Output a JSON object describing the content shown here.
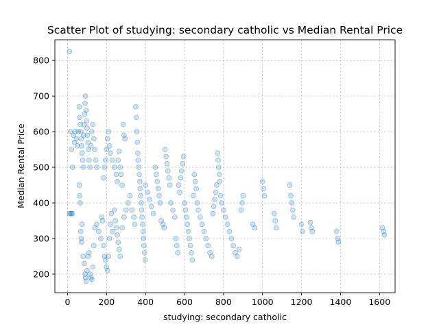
{
  "chart_data": {
    "type": "scatter",
    "title": "Scatter Plot of studying: secondary catholic vs Median Rental Price",
    "xlabel": "studying: secondary catholic",
    "ylabel": "Median Rental Price",
    "xlim": [
      -65,
      1680
    ],
    "ylim": [
      148,
      858
    ],
    "xticks": [
      0,
      200,
      400,
      600,
      800,
      1000,
      1200,
      1400,
      1600
    ],
    "yticks": [
      200,
      300,
      400,
      500,
      600,
      700,
      800
    ],
    "grid": true,
    "color": "#1f77b4",
    "series": [
      {
        "points": [
          [
            10,
            825
          ],
          [
            15,
            600
          ],
          [
            20,
            550
          ],
          [
            25,
            500
          ],
          [
            30,
            590
          ],
          [
            35,
            570
          ],
          [
            40,
            600
          ],
          [
            45,
            580
          ],
          [
            50,
            560
          ],
          [
            55,
            600
          ],
          [
            60,
            670
          ],
          [
            62,
            640
          ],
          [
            65,
            620
          ],
          [
            68,
            600
          ],
          [
            70,
            580
          ],
          [
            72,
            560
          ],
          [
            75,
            540
          ],
          [
            78,
            520
          ],
          [
            80,
            500
          ],
          [
            82,
            590
          ],
          [
            85,
            620
          ],
          [
            88,
            650
          ],
          [
            90,
            680
          ],
          [
            92,
            700
          ],
          [
            95,
            660
          ],
          [
            98,
            630
          ],
          [
            100,
            610
          ],
          [
            102,
            590
          ],
          [
            105,
            570
          ],
          [
            108,
            550
          ],
          [
            110,
            520
          ],
          [
            115,
            500
          ],
          [
            120,
            560
          ],
          [
            125,
            600
          ],
          [
            130,
            620
          ],
          [
            135,
            580
          ],
          [
            140,
            550
          ],
          [
            145,
            520
          ],
          [
            150,
            500
          ],
          [
            10,
            370
          ],
          [
            15,
            370
          ],
          [
            20,
            370
          ],
          [
            25,
            370
          ],
          [
            60,
            450
          ],
          [
            62,
            420
          ],
          [
            65,
            400
          ],
          [
            68,
            320
          ],
          [
            70,
            300
          ],
          [
            72,
            290
          ],
          [
            75,
            340
          ],
          [
            80,
            250
          ],
          [
            85,
            230
          ],
          [
            90,
            200
          ],
          [
            92,
            190
          ],
          [
            95,
            180
          ],
          [
            100,
            210
          ],
          [
            105,
            250
          ],
          [
            110,
            260
          ],
          [
            115,
            200
          ],
          [
            120,
            190
          ],
          [
            125,
            185
          ],
          [
            130,
            220
          ],
          [
            135,
            280
          ],
          [
            140,
            330
          ],
          [
            150,
            340
          ],
          [
            160,
            320
          ],
          [
            170,
            300
          ],
          [
            175,
            360
          ],
          [
            180,
            350
          ],
          [
            185,
            280
          ],
          [
            190,
            250
          ],
          [
            195,
            240
          ],
          [
            200,
            220
          ],
          [
            205,
            210
          ],
          [
            210,
            250
          ],
          [
            215,
            300
          ],
          [
            220,
            340
          ],
          [
            225,
            370
          ],
          [
            230,
            320
          ],
          [
            185,
            470
          ],
          [
            190,
            500
          ],
          [
            195,
            520
          ],
          [
            200,
            550
          ],
          [
            205,
            580
          ],
          [
            210,
            600
          ],
          [
            215,
            560
          ],
          [
            220,
            540
          ],
          [
            230,
            520
          ],
          [
            240,
            500
          ],
          [
            250,
            480
          ],
          [
            255,
            460
          ],
          [
            260,
            520
          ],
          [
            265,
            545
          ],
          [
            270,
            500
          ],
          [
            275,
            480
          ],
          [
            280,
            450
          ],
          [
            285,
            620
          ],
          [
            290,
            590
          ],
          [
            295,
            580
          ],
          [
            240,
            380
          ],
          [
            245,
            350
          ],
          [
            250,
            330
          ],
          [
            255,
            310
          ],
          [
            260,
            290
          ],
          [
            265,
            270
          ],
          [
            270,
            250
          ],
          [
            280,
            330
          ],
          [
            290,
            360
          ],
          [
            300,
            380
          ],
          [
            310,
            400
          ],
          [
            320,
            420
          ],
          [
            330,
            380
          ],
          [
            340,
            360
          ],
          [
            345,
            340
          ],
          [
            350,
            670
          ],
          [
            352,
            640
          ],
          [
            355,
            600
          ],
          [
            358,
            570
          ],
          [
            360,
            540
          ],
          [
            362,
            520
          ],
          [
            365,
            500
          ],
          [
            368,
            480
          ],
          [
            370,
            460
          ],
          [
            372,
            440
          ],
          [
            375,
            420
          ],
          [
            378,
            400
          ],
          [
            380,
            380
          ],
          [
            382,
            360
          ],
          [
            385,
            340
          ],
          [
            388,
            320
          ],
          [
            390,
            300
          ],
          [
            392,
            280
          ],
          [
            395,
            260
          ],
          [
            398,
            240
          ],
          [
            400,
            450
          ],
          [
            410,
            430
          ],
          [
            420,
            410
          ],
          [
            430,
            390
          ],
          [
            440,
            370
          ],
          [
            450,
            500
          ],
          [
            455,
            480
          ],
          [
            460,
            460
          ],
          [
            465,
            440
          ],
          [
            470,
            420
          ],
          [
            475,
            400
          ],
          [
            480,
            350
          ],
          [
            490,
            340
          ],
          [
            495,
            330
          ],
          [
            500,
            550
          ],
          [
            505,
            530
          ],
          [
            510,
            510
          ],
          [
            515,
            490
          ],
          [
            520,
            470
          ],
          [
            525,
            450
          ],
          [
            530,
            400
          ],
          [
            540,
            380
          ],
          [
            550,
            360
          ],
          [
            555,
            300
          ],
          [
            560,
            280
          ],
          [
            565,
            260
          ],
          [
            570,
            450
          ],
          [
            575,
            430
          ],
          [
            580,
            470
          ],
          [
            585,
            490
          ],
          [
            590,
            510
          ],
          [
            595,
            530
          ],
          [
            600,
            400
          ],
          [
            605,
            380
          ],
          [
            610,
            360
          ],
          [
            615,
            340
          ],
          [
            620,
            320
          ],
          [
            625,
            300
          ],
          [
            630,
            280
          ],
          [
            635,
            260
          ],
          [
            640,
            240
          ],
          [
            645,
            420
          ],
          [
            650,
            480
          ],
          [
            655,
            460
          ],
          [
            660,
            440
          ],
          [
            665,
            400
          ],
          [
            670,
            380
          ],
          [
            680,
            360
          ],
          [
            690,
            340
          ],
          [
            700,
            320
          ],
          [
            710,
            300
          ],
          [
            720,
            280
          ],
          [
            730,
            260
          ],
          [
            740,
            250
          ],
          [
            745,
            370
          ],
          [
            750,
            390
          ],
          [
            755,
            410
          ],
          [
            760,
            430
          ],
          [
            765,
            450
          ],
          [
            770,
            540
          ],
          [
            772,
            520
          ],
          [
            775,
            500
          ],
          [
            778,
            480
          ],
          [
            780,
            460
          ],
          [
            785,
            420
          ],
          [
            790,
            400
          ],
          [
            800,
            380
          ],
          [
            810,
            360
          ],
          [
            820,
            340
          ],
          [
            830,
            320
          ],
          [
            840,
            300
          ],
          [
            850,
            280
          ],
          [
            860,
            260
          ],
          [
            870,
            250
          ],
          [
            880,
            270
          ],
          [
            890,
            380
          ],
          [
            895,
            400
          ],
          [
            900,
            420
          ],
          [
            950,
            340
          ],
          [
            960,
            330
          ],
          [
            1000,
            460
          ],
          [
            1005,
            440
          ],
          [
            1010,
            420
          ],
          [
            1060,
            370
          ],
          [
            1065,
            350
          ],
          [
            1070,
            330
          ],
          [
            1140,
            450
          ],
          [
            1145,
            420
          ],
          [
            1150,
            400
          ],
          [
            1155,
            380
          ],
          [
            1160,
            360
          ],
          [
            1200,
            340
          ],
          [
            1205,
            320
          ],
          [
            1245,
            345
          ],
          [
            1250,
            330
          ],
          [
            1255,
            320
          ],
          [
            1380,
            320
          ],
          [
            1385,
            300
          ],
          [
            1390,
            290
          ],
          [
            1615,
            330
          ],
          [
            1620,
            320
          ],
          [
            1625,
            310
          ]
        ]
      }
    ]
  }
}
